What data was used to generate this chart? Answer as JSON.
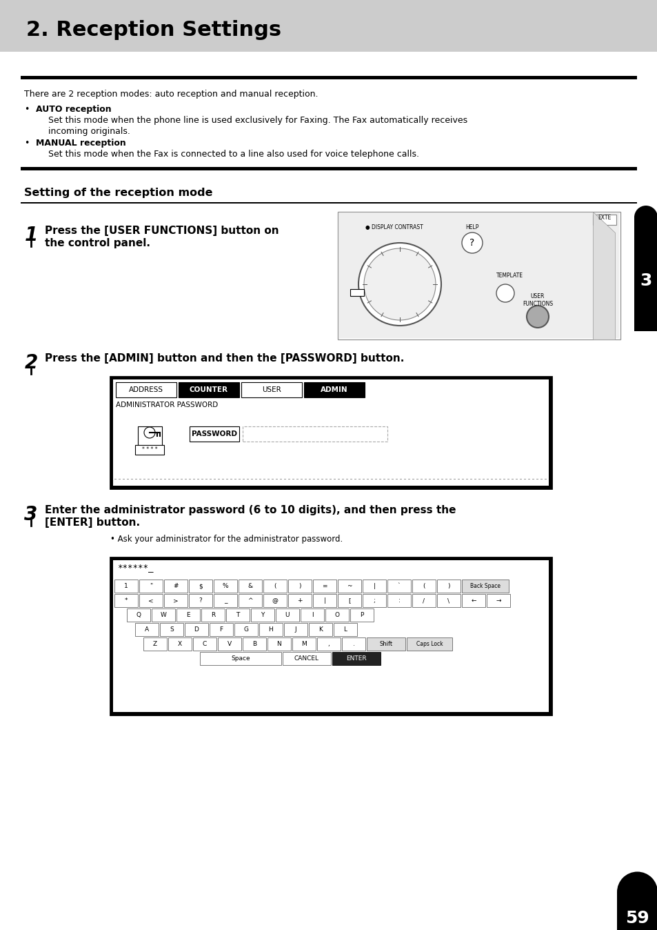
{
  "title": "2. Reception Settings",
  "title_bg": "#cccccc",
  "page_bg": "#ffffff",
  "page_number": "59",
  "chapter_number": "3",
  "intro_text": "There are 2 reception modes: auto reception and manual reception.",
  "bullet1_title": "AUTO reception",
  "bullet1_body1": "Set this mode when the phone line is used exclusively for Faxing. The Fax automatically receives",
  "bullet1_body2": "incoming originals.",
  "bullet2_title": "MANUAL reception",
  "bullet2_body": "Set this mode when the Fax is connected to a line also used for voice telephone calls.",
  "section_title": "Setting of the reception mode",
  "step1_num": "1",
  "step1_line1": "Press the [USER FUNCTIONS] button on",
  "step1_line2": "the control panel.",
  "step2_num": "2",
  "step2_text": "Press the [ADMIN] button and then the [PASSWORD] button.",
  "step3_num": "3",
  "step3_line1": "Enter the administrator password (6 to 10 digits), and then press the",
  "step3_line2": "[ENTER] button.",
  "step3_bullet": "Ask your administrator for the administrator password.",
  "tabs": [
    "ADDRESS",
    "COUNTER",
    "USER",
    "ADMIN"
  ],
  "tabs_bold": [
    false,
    true,
    false,
    true
  ],
  "admin_pwd_text": "ADMINISTRATOR PASSWORD",
  "pwd_btn_text": "PASSWORD",
  "kbd_row1": [
    "1",
    "\"",
    "#",
    "$",
    "%",
    "&",
    "(",
    ")",
    "=",
    "~",
    "|",
    "`",
    "(",
    ")"
  ],
  "kbd_row2": [
    "*",
    "<",
    ">",
    "?",
    "_",
    "^",
    "@",
    "+",
    "|",
    "[",
    ";",
    ":",
    "/",
    "\\"
  ],
  "kbd_row3": [
    "Q",
    "W",
    "E",
    "R",
    "T",
    "Y",
    "U",
    "I",
    "O",
    "P"
  ],
  "kbd_row4": [
    "A",
    "S",
    "D",
    "F",
    "G",
    "H",
    "J",
    "K",
    "L"
  ],
  "kbd_row5": [
    "Z",
    "X",
    "C",
    "V",
    "B",
    "N",
    "M",
    ",",
    "."
  ],
  "back_space": "Back Space",
  "arr_left": "←",
  "arr_right": "→",
  "shift_text": "Shift",
  "caps_text": "Caps Lock",
  "space_text": "Space",
  "cancel_text": "CANCEL",
  "enter_text": "ENTER",
  "pwd_display": "******_"
}
